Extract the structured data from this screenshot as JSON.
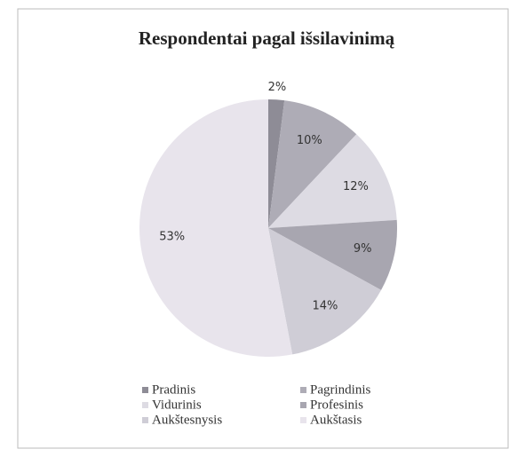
{
  "chart_data": {
    "type": "pie",
    "title": "Respondentai pagal išsilavinimą",
    "categories": [
      "Pradinis",
      "Pagrindinis",
      "Vidurinis",
      "Profesinis",
      "Aukštesnysis",
      "Aukštasis"
    ],
    "values": [
      2,
      10,
      12,
      9,
      14,
      53
    ],
    "value_labels": [
      "2%",
      "10%",
      "12%",
      "9%",
      "14%",
      "53%"
    ],
    "colors": [
      "#8e8c96",
      "#aeacb6",
      "#dddbe3",
      "#a8a6b0",
      "#cfcdd6",
      "#e8e4ec"
    ],
    "legend": "bottom"
  }
}
